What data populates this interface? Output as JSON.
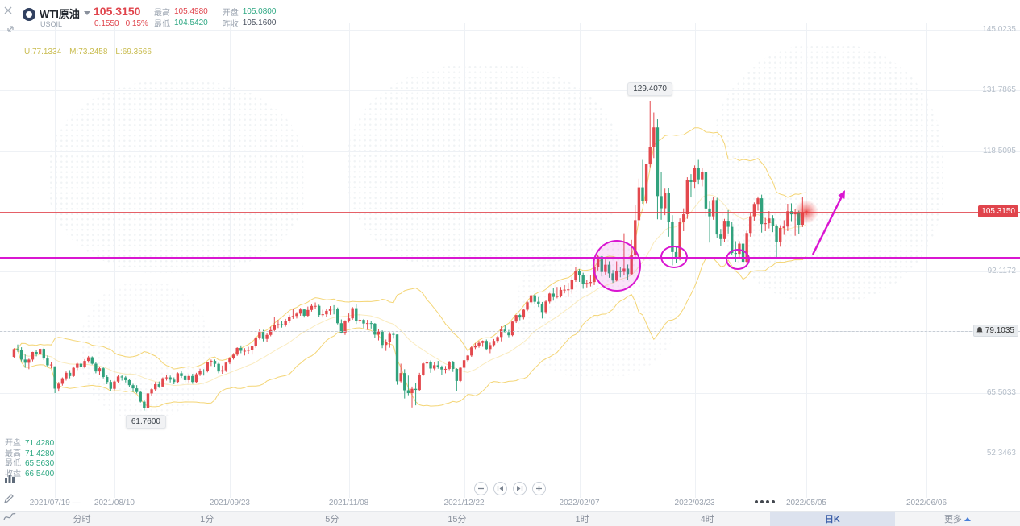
{
  "header": {
    "symbol": "WTI原油",
    "code": "USOIL",
    "last_price": "105.3150",
    "change": "0.1550",
    "change_pct": "0.15%",
    "stats": [
      {
        "label": "最高",
        "value": "105.4980",
        "tone": "up"
      },
      {
        "label": "最低",
        "value": "104.5420",
        "tone": "down"
      },
      {
        "label": "开盘",
        "value": "105.0800",
        "tone": "down"
      },
      {
        "label": "昨收",
        "value": "105.1600",
        "tone": "neutral"
      }
    ]
  },
  "indicator": {
    "name": "BOLL",
    "u": "U:77.1334",
    "m": "M:73.2458",
    "l": "L:69.3566"
  },
  "y_axis": {
    "labels": [
      "145.0235",
      "131.7865",
      "118.5095",
      "92.1172",
      "65.5033",
      "52.3463"
    ],
    "current_tag": "105.3150",
    "alert_tag": "79.1035"
  },
  "x_axis": {
    "ticks": [
      "2021/07/19 —",
      "2021/08/10",
      "2021/09/23",
      "2021/11/08",
      "2021/12/22",
      "2022/02/07",
      "2022/03/23",
      "2022/05/05",
      "2022/06/06"
    ]
  },
  "hover_ohlc": [
    {
      "label": "开盘",
      "value": "71.4280"
    },
    {
      "label": "最高",
      "value": "71.4280"
    },
    {
      "label": "最低",
      "value": "65.5630"
    },
    {
      "label": "收盘",
      "value": "66.5400"
    }
  ],
  "annotations": {
    "peak_label": "129.4070",
    "trough_label": "61.7600",
    "support_price": 95.18,
    "color": "#d916d1"
  },
  "toolbar": {
    "items": [
      "分时",
      "1分",
      "5分",
      "15分",
      "1时",
      "4时",
      "日K",
      "更多"
    ],
    "selected": "日K"
  },
  "colors": {
    "up": "#e3494e",
    "down": "#31a27d",
    "band": "#f3d36e",
    "grid": "#eef1f5"
  },
  "chart_data": {
    "type": "candlestick",
    "title": "WTI原油 日K",
    "symbol": "USOIL",
    "timeframe": "日K",
    "indicator": "BOLL(20,2)",
    "y_range": [
      52.3463,
      145.0235
    ],
    "y_gridlines": [
      145.0235,
      131.7865,
      118.5095,
      92.1172,
      79.1035,
      65.5033,
      52.3463
    ],
    "current_price": 105.315,
    "ohlc": [
      [
        73.5,
        75.4,
        73.2,
        75.2
      ],
      [
        75.2,
        76.2,
        74.6,
        75.0
      ],
      [
        75.0,
        75.6,
        72.5,
        72.9
      ],
      [
        72.9,
        74.0,
        71.1,
        72.2
      ],
      [
        72.2,
        73.1,
        70.8,
        72.9
      ],
      [
        72.9,
        74.6,
        72.5,
        74.56
      ],
      [
        74.56,
        75.0,
        73.6,
        74.1
      ],
      [
        74.1,
        75.3,
        73.9,
        75.25
      ],
      [
        75.25,
        75.5,
        72.8,
        73.13
      ],
      [
        73.13,
        73.8,
        71.3,
        71.65
      ],
      [
        71.65,
        72.3,
        71.0,
        71.81
      ],
      [
        71.428,
        71.428,
        65.563,
        66.54
      ],
      [
        66.54,
        68.0,
        65.9,
        67.6
      ],
      [
        67.6,
        69.0,
        67.2,
        68.8
      ],
      [
        68.8,
        70.3,
        68.3,
        70.0
      ],
      [
        70.0,
        70.6,
        68.8,
        69.3
      ],
      [
        69.3,
        71.4,
        69.1,
        71.1
      ],
      [
        71.1,
        72.2,
        70.6,
        72.0
      ],
      [
        72.0,
        72.4,
        70.9,
        71.3
      ],
      [
        71.3,
        73.0,
        71.0,
        72.6
      ],
      [
        72.6,
        73.7,
        72.2,
        73.4
      ],
      [
        73.4,
        73.6,
        71.8,
        72.0
      ],
      [
        72.0,
        72.3,
        69.9,
        70.3
      ],
      [
        70.3,
        71.3,
        69.6,
        71.0
      ],
      [
        71.0,
        71.2,
        68.8,
        69.1
      ],
      [
        69.1,
        69.5,
        67.5,
        68.0
      ],
      [
        68.0,
        68.4,
        66.1,
        66.5
      ],
      [
        66.5,
        68.3,
        66.2,
        68.1
      ],
      [
        68.1,
        69.5,
        67.8,
        69.2
      ],
      [
        69.2,
        69.6,
        68.3,
        69.0
      ],
      [
        69.0,
        69.3,
        67.9,
        68.4
      ],
      [
        68.4,
        68.6,
        66.9,
        67.3
      ],
      [
        67.3,
        67.6,
        65.8,
        66.6
      ],
      [
        66.6,
        67.3,
        65.5,
        65.8
      ],
      [
        65.8,
        66.1,
        63.5,
        63.7
      ],
      [
        63.7,
        64.0,
        61.76,
        62.3
      ],
      [
        62.3,
        65.6,
        62.1,
        65.5
      ],
      [
        65.5,
        66.6,
        65.0,
        66.4
      ],
      [
        66.4,
        68.0,
        66.1,
        67.5
      ],
      [
        67.5,
        68.1,
        66.7,
        67.0
      ],
      [
        67.0,
        69.0,
        66.8,
        68.8
      ],
      [
        68.8,
        69.6,
        68.3,
        69.0
      ],
      [
        69.0,
        69.4,
        67.9,
        68.5
      ],
      [
        68.5,
        69.0,
        67.5,
        68.0
      ],
      [
        68.0,
        70.1,
        67.8,
        69.9
      ],
      [
        69.9,
        70.3,
        68.9,
        69.3
      ],
      [
        69.3,
        69.7,
        68.0,
        68.4
      ],
      [
        68.4,
        69.7,
        67.9,
        69.3
      ],
      [
        69.3,
        69.8,
        67.6,
        68.0
      ],
      [
        68.0,
        70.0,
        67.7,
        69.7
      ],
      [
        69.7,
        70.9,
        69.3,
        70.5
      ],
      [
        70.5,
        70.8,
        69.4,
        70.46
      ],
      [
        70.46,
        72.4,
        70.1,
        72.3
      ],
      [
        72.3,
        72.9,
        71.5,
        72.6
      ],
      [
        72.6,
        72.9,
        71.2,
        71.97
      ],
      [
        71.97,
        72.2,
        69.9,
        70.3
      ],
      [
        70.3,
        71.6,
        69.8,
        70.56
      ],
      [
        70.56,
        72.4,
        70.2,
        72.23
      ],
      [
        72.23,
        73.4,
        71.9,
        73.3
      ],
      [
        73.3,
        74.3,
        72.9,
        73.98
      ],
      [
        73.98,
        75.6,
        73.7,
        75.45
      ],
      [
        75.45,
        76.0,
        74.3,
        74.83
      ],
      [
        74.83,
        75.4,
        73.8,
        74.83
      ],
      [
        74.83,
        75.7,
        74.1,
        75.03
      ],
      [
        75.03,
        75.9,
        74.0,
        75.88
      ],
      [
        75.88,
        77.9,
        75.5,
        77.62
      ],
      [
        77.62,
        79.5,
        77.3,
        78.93
      ],
      [
        78.93,
        79.4,
        76.9,
        77.43
      ],
      [
        77.43,
        78.7,
        76.7,
        78.3
      ],
      [
        78.3,
        80.1,
        78.0,
        79.35
      ],
      [
        79.35,
        82.2,
        79.1,
        80.52
      ],
      [
        80.52,
        81.6,
        79.8,
        80.64
      ],
      [
        80.64,
        81.4,
        79.9,
        80.44
      ],
      [
        80.44,
        81.8,
        80.1,
        81.31
      ],
      [
        81.31,
        82.7,
        80.9,
        82.28
      ],
      [
        82.28,
        83.9,
        81.8,
        82.44
      ],
      [
        82.44,
        83.3,
        81.9,
        82.96
      ],
      [
        82.96,
        84.2,
        82.5,
        83.87
      ],
      [
        83.87,
        84.0,
        82.1,
        82.5
      ],
      [
        82.5,
        84.5,
        82.3,
        83.76
      ],
      [
        83.76,
        85.0,
        83.4,
        84.65
      ],
      [
        84.65,
        85.4,
        83.9,
        84.65
      ],
      [
        84.65,
        84.9,
        82.3,
        82.66
      ],
      [
        82.66,
        83.8,
        82.1,
        82.81
      ],
      [
        82.81,
        84.0,
        82.2,
        83.57
      ],
      [
        83.57,
        84.6,
        82.7,
        84.05
      ],
      [
        84.05,
        84.8,
        82.8,
        83.91
      ],
      [
        83.91,
        84.3,
        80.6,
        80.86
      ],
      [
        80.86,
        81.7,
        78.6,
        78.81
      ],
      [
        78.81,
        81.5,
        78.3,
        81.27
      ],
      [
        81.27,
        83.0,
        81.0,
        81.93
      ],
      [
        81.93,
        84.4,
        81.6,
        84.15
      ],
      [
        84.15,
        84.97,
        80.7,
        81.34
      ],
      [
        81.34,
        82.9,
        80.9,
        81.59
      ],
      [
        81.59,
        81.8,
        79.8,
        80.79
      ],
      [
        80.79,
        81.6,
        79.4,
        80.88
      ],
      [
        80.88,
        81.4,
        79.7,
        80.76
      ],
      [
        80.76,
        80.9,
        77.7,
        78.36
      ],
      [
        78.36,
        79.6,
        77.1,
        79.01
      ],
      [
        79.01,
        79.3,
        75.4,
        76.1
      ],
      [
        76.1,
        77.3,
        74.8,
        76.75
      ],
      [
        76.75,
        78.9,
        75.5,
        78.5
      ],
      [
        78.5,
        78.9,
        77.5,
        78.39
      ],
      [
        78.39,
        78.4,
        67.4,
        68.15
      ],
      [
        68.15,
        72.0,
        67.9,
        69.95
      ],
      [
        69.95,
        70.8,
        64.4,
        66.18
      ],
      [
        66.18,
        69.4,
        65.1,
        65.57
      ],
      [
        65.57,
        67.0,
        62.43,
        66.5
      ],
      [
        66.5,
        67.7,
        62.9,
        66.26
      ],
      [
        66.26,
        70.0,
        66.0,
        69.49
      ],
      [
        69.49,
        72.4,
        69.3,
        72.05
      ],
      [
        72.05,
        72.9,
        71.1,
        72.36
      ],
      [
        72.36,
        72.7,
        70.0,
        70.94
      ],
      [
        70.94,
        72.3,
        70.6,
        71.67
      ],
      [
        71.67,
        72.6,
        70.9,
        71.29
      ],
      [
        71.29,
        71.6,
        69.5,
        70.73
      ],
      [
        70.73,
        71.5,
        69.9,
        70.87
      ],
      [
        70.87,
        72.6,
        70.6,
        72.38
      ],
      [
        72.38,
        72.6,
        70.2,
        70.86
      ],
      [
        70.86,
        71.0,
        66.04,
        68.23
      ],
      [
        68.23,
        71.3,
        68.0,
        71.12
      ],
      [
        71.12,
        72.8,
        70.9,
        72.76
      ],
      [
        72.76,
        73.9,
        72.4,
        73.79
      ],
      [
        73.79,
        75.9,
        73.5,
        75.57
      ],
      [
        75.57,
        76.5,
        75.2,
        75.98
      ],
      [
        75.98,
        77.0,
        75.5,
        76.56
      ],
      [
        76.56,
        77.1,
        75.7,
        76.99
      ],
      [
        76.99,
        77.3,
        74.9,
        75.21
      ],
      [
        75.21,
        76.6,
        74.3,
        76.08
      ],
      [
        76.08,
        77.4,
        75.7,
        76.99
      ],
      [
        76.99,
        78.1,
        76.5,
        77.85
      ],
      [
        77.85,
        80.2,
        76.9,
        79.46
      ],
      [
        79.46,
        80.5,
        78.9,
        78.9
      ],
      [
        78.9,
        79.4,
        77.8,
        78.23
      ],
      [
        78.23,
        81.3,
        78.0,
        81.22
      ],
      [
        81.22,
        82.7,
        80.9,
        82.64
      ],
      [
        82.64,
        82.9,
        81.5,
        82.12
      ],
      [
        82.12,
        84.0,
        81.7,
        83.82
      ],
      [
        83.82,
        85.7,
        83.5,
        85.43
      ],
      [
        85.43,
        87.1,
        84.9,
        86.96
      ],
      [
        86.96,
        87.3,
        85.1,
        85.55
      ],
      [
        85.55,
        86.6,
        84.4,
        85.14
      ],
      [
        85.14,
        85.5,
        81.9,
        83.31
      ],
      [
        83.31,
        85.9,
        82.9,
        85.6
      ],
      [
        85.6,
        87.5,
        85.2,
        87.35
      ],
      [
        87.35,
        88.5,
        85.8,
        86.61
      ],
      [
        86.61,
        88.8,
        86.3,
        86.82
      ],
      [
        86.82,
        88.8,
        86.5,
        88.15
      ],
      [
        88.15,
        89.2,
        87.4,
        88.2
      ],
      [
        88.2,
        89.7,
        86.6,
        88.26
      ],
      [
        88.26,
        91.0,
        87.3,
        90.27
      ],
      [
        90.27,
        93.2,
        89.9,
        92.31
      ],
      [
        92.31,
        92.7,
        89.9,
        91.32
      ],
      [
        91.32,
        91.9,
        88.4,
        89.36
      ],
      [
        89.36,
        90.3,
        88.7,
        89.66
      ],
      [
        89.66,
        91.3,
        88.9,
        89.88
      ],
      [
        89.88,
        94.7,
        89.2,
        93.1
      ],
      [
        93.1,
        95.8,
        92.4,
        95.46
      ],
      [
        95.46,
        95.6,
        91.1,
        92.07
      ],
      [
        92.07,
        94.8,
        91.5,
        93.66
      ],
      [
        93.66,
        94.4,
        90.8,
        91.76
      ],
      [
        91.76,
        92.5,
        89.7,
        90.21
      ],
      [
        90.21,
        94.4,
        90.0,
        92.35
      ],
      [
        92.35,
        93.2,
        90.9,
        92.1
      ],
      [
        92.1,
        100.54,
        91.4,
        92.81
      ],
      [
        92.81,
        93.7,
        90.3,
        91.59
      ],
      [
        91.59,
        99.1,
        91.3,
        95.72
      ],
      [
        95.72,
        106.8,
        95.4,
        103.41
      ],
      [
        103.41,
        112.5,
        103.0,
        110.6
      ],
      [
        110.6,
        116.6,
        107.0,
        107.67
      ],
      [
        107.67,
        115.7,
        107.1,
        115.68
      ],
      [
        115.68,
        129.41,
        115.0,
        119.4
      ],
      [
        119.4,
        127.0,
        117.0,
        123.7
      ],
      [
        123.7,
        125.5,
        103.6,
        108.7
      ],
      [
        108.7,
        114.0,
        103.5,
        106.02
      ],
      [
        106.02,
        110.3,
        104.5,
        109.33
      ],
      [
        109.33,
        110.5,
        99.8,
        103.01
      ],
      [
        103.01,
        104.5,
        93.53,
        96.44
      ],
      [
        96.44,
        97.6,
        94.0,
        95.04
      ],
      [
        95.04,
        103.8,
        94.6,
        102.98
      ],
      [
        102.98,
        106.0,
        101.0,
        104.7
      ],
      [
        104.7,
        112.8,
        103.7,
        112.12
      ],
      [
        112.12,
        113.5,
        108.4,
        111.76
      ],
      [
        111.76,
        115.4,
        110.3,
        114.93
      ],
      [
        114.93,
        116.6,
        111.2,
        112.34
      ],
      [
        112.34,
        114.8,
        110.8,
        113.9
      ],
      [
        113.9,
        113.95,
        104.3,
        105.96
      ],
      [
        105.96,
        107.5,
        98.5,
        104.24
      ],
      [
        104.24,
        108.5,
        103.5,
        107.82
      ],
      [
        107.82,
        108.3,
        99.6,
        100.28
      ],
      [
        100.28,
        101.5,
        97.8,
        99.27
      ],
      [
        99.27,
        103.7,
        98.7,
        103.28
      ],
      [
        103.28,
        105.6,
        100.5,
        101.96
      ],
      [
        101.96,
        103.0,
        95.7,
        96.23
      ],
      [
        96.23,
        98.8,
        94.3,
        96.03
      ],
      [
        96.03,
        98.8,
        95.2,
        98.26
      ],
      [
        98.26,
        98.7,
        92.93,
        94.29
      ],
      [
        94.29,
        101.1,
        93.9,
        100.6
      ],
      [
        100.6,
        104.9,
        99.8,
        104.25
      ],
      [
        104.25,
        107.3,
        103.3,
        106.95
      ],
      [
        106.95,
        108.6,
        105.5,
        108.21
      ],
      [
        108.21,
        109.0,
        100.7,
        102.56
      ],
      [
        102.56,
        103.9,
        101.0,
        102.75
      ],
      [
        102.75,
        105.4,
        101.6,
        103.79
      ],
      [
        103.79,
        104.5,
        100.8,
        102.07
      ],
      [
        102.07,
        102.5,
        95.3,
        98.54
      ],
      [
        98.54,
        102.3,
        97.6,
        101.7
      ],
      [
        101.7,
        103.4,
        100.2,
        102.02
      ],
      [
        102.02,
        107.0,
        101.0,
        105.36
      ],
      [
        105.36,
        107.1,
        103.2,
        104.69
      ],
      [
        104.69,
        105.8,
        100.0,
        105.17
      ],
      [
        105.17,
        105.5,
        100.3,
        102.41
      ],
      [
        102.41,
        108.4,
        101.9,
        105.16
      ],
      [
        105.08,
        105.498,
        104.542,
        105.315
      ]
    ]
  }
}
